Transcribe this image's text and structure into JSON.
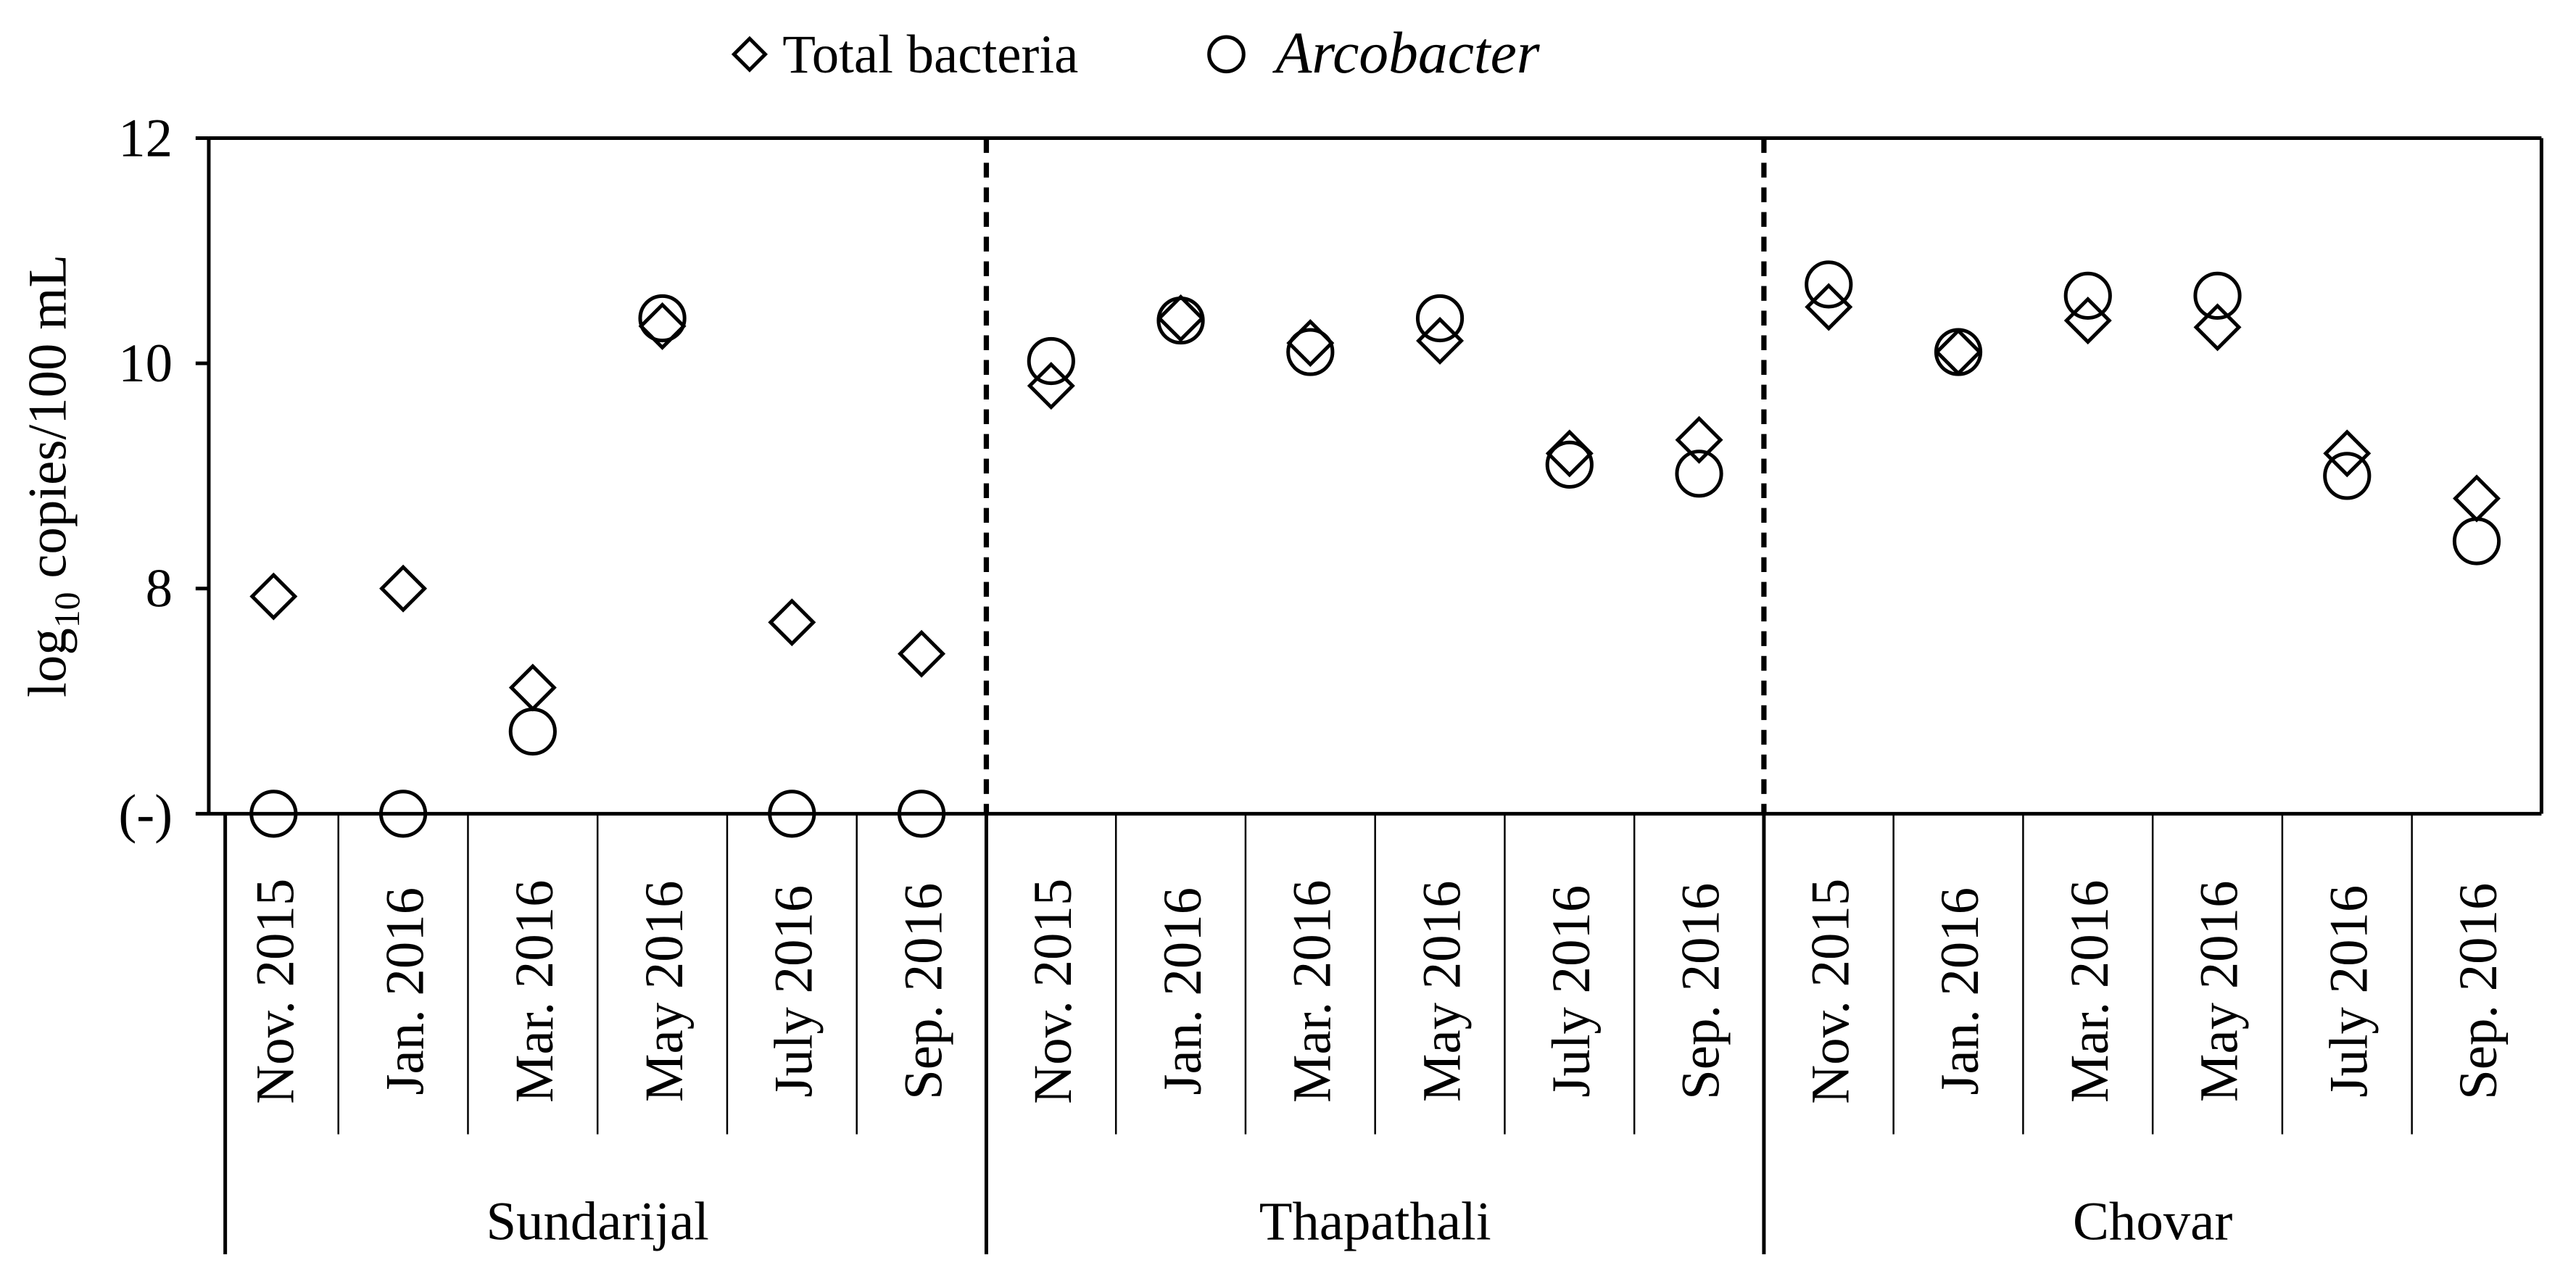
{
  "chart_data": {
    "type": "scatter",
    "title": "",
    "ylabel": {
      "prefix": "log",
      "subscript": "10",
      "suffix": " copies/100 mL"
    },
    "y_ticks": [
      "(-)",
      "8",
      "10",
      "12"
    ],
    "y_below_detection_label": "(-)",
    "ylim": [
      6,
      12
    ],
    "grid": false,
    "legend": {
      "position": "top-center",
      "entries": [
        "Total bacteria",
        "Arcobacter"
      ]
    },
    "categories": [
      "Nov. 2015",
      "Jan. 2016",
      "Mar. 2016",
      "May 2016",
      "July 2016",
      "Sep. 2016"
    ],
    "groups": [
      {
        "name": "Sundarijal",
        "total_bacteria": [
          7.93,
          8.0,
          7.12,
          10.33,
          7.7,
          7.42
        ],
        "arcobacter": [
          null,
          null,
          6.73,
          10.4,
          null,
          null
        ]
      },
      {
        "name": "Thapathali",
        "total_bacteria": [
          9.8,
          10.4,
          10.18,
          10.2,
          9.2,
          9.32
        ],
        "arcobacter": [
          10.02,
          10.38,
          10.1,
          10.4,
          9.1,
          9.02
        ]
      },
      {
        "name": "Chovar",
        "total_bacteria": [
          10.5,
          10.1,
          10.38,
          10.32,
          9.2,
          8.8
        ],
        "arcobacter": [
          10.7,
          10.1,
          10.6,
          10.6,
          9.0,
          8.42
        ]
      }
    ],
    "series": [
      {
        "name": "Total bacteria",
        "marker": "diamond"
      },
      {
        "name": "Arcobacter",
        "marker": "circle",
        "italic": true
      }
    ]
  }
}
